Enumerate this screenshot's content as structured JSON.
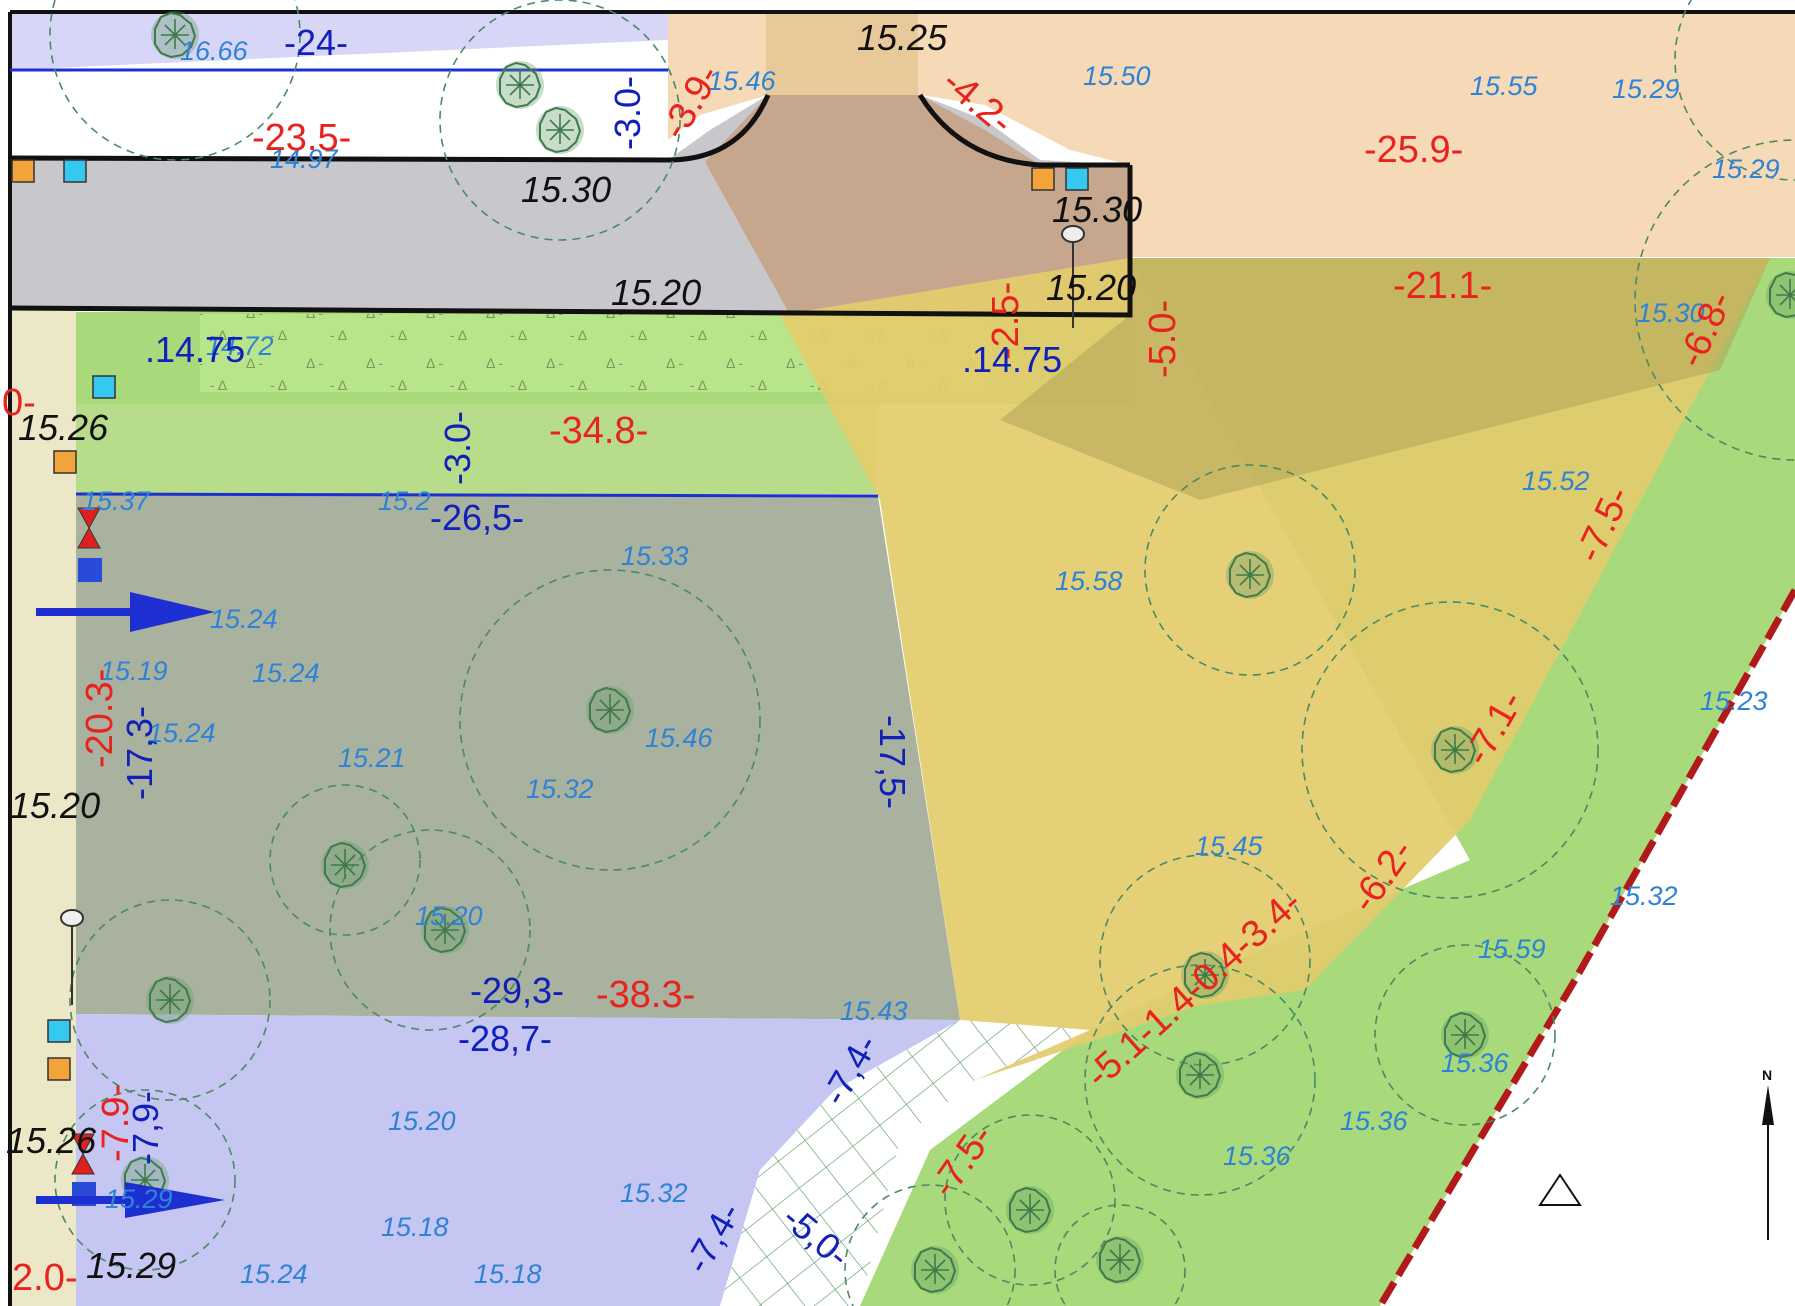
{
  "elevations_black": [
    {
      "label": "15.25"
    },
    {
      "label": "15.30"
    },
    {
      "label": "15.30"
    },
    {
      "label": "15.20"
    },
    {
      "label": "15.20"
    },
    {
      "label": "15.26"
    },
    {
      "label": "15.20"
    },
    {
      "label": "15.26"
    },
    {
      "label": "15.29"
    }
  ],
  "elevations_blue": [
    {
      "label": "16.66"
    },
    {
      "label": "15.46"
    },
    {
      "label": "15.50"
    },
    {
      "label": "15.55"
    },
    {
      "label": "15.29"
    },
    {
      "label": "15.29"
    },
    {
      "label": "14.97"
    },
    {
      "label": "15.30"
    },
    {
      "label": "14.72"
    },
    {
      "label": "15.37"
    },
    {
      "label": "15.2"
    },
    {
      "label": "15.33"
    },
    {
      "label": "15.24"
    },
    {
      "label": "15.19"
    },
    {
      "label": "15.24"
    },
    {
      "label": "15.24"
    },
    {
      "label": "15.21"
    },
    {
      "label": "15.46"
    },
    {
      "label": "15.32"
    },
    {
      "label": "15.52"
    },
    {
      "label": "15.58"
    },
    {
      "label": "15.23"
    },
    {
      "label": "15.45"
    },
    {
      "label": "15.32"
    },
    {
      "label": "15.59"
    },
    {
      "label": "15.20"
    },
    {
      "label": "15.43"
    },
    {
      "label": "15.36"
    },
    {
      "label": "15.36"
    },
    {
      "label": "15.36"
    },
    {
      "label": "15.20"
    },
    {
      "label": "15.32"
    },
    {
      "label": "15.18"
    },
    {
      "label": "15.24"
    },
    {
      "label": "15.18"
    },
    {
      "label": "15.29"
    }
  ],
  "dimensions_red": [
    {
      "label": "-23.5-"
    },
    {
      "label": "-3.9-"
    },
    {
      "label": "-4.2-"
    },
    {
      "label": "-25.9-"
    },
    {
      "label": "-21.1-"
    },
    {
      "label": "-5.0-"
    },
    {
      "label": "-2.5-"
    },
    {
      "label": "-6.8-"
    },
    {
      "label": "-34.8-"
    },
    {
      "label": "-7.5-"
    },
    {
      "label": "-20.3-"
    },
    {
      "label": "-7.1-"
    },
    {
      "label": "-6.2-"
    },
    {
      "label": "-38.3-"
    },
    {
      "label": "-5.1-1.4-0.4-3.4-"
    },
    {
      "label": "-7.5-"
    },
    {
      "label": "-7.9-"
    },
    {
      "label": "2.0-"
    },
    {
      "label": "0-"
    }
  ],
  "dimensions_blue": [
    {
      "label": "-24-"
    },
    {
      "label": "-3.0-"
    },
    {
      "label": ".14.75"
    },
    {
      "label": ".14.75"
    },
    {
      "label": "-3.0-"
    },
    {
      "label": "-26,5-"
    },
    {
      "label": "-17,3-"
    },
    {
      "label": "-17,5-"
    },
    {
      "label": "-29,3-"
    },
    {
      "label": "-28,7-"
    },
    {
      "label": "-7,4-"
    },
    {
      "label": "-7,9-"
    },
    {
      "label": "-7,4-"
    },
    {
      "label": "-5,0-"
    }
  ],
  "north_arrow": {
    "label": "N"
  },
  "colors": {
    "lavender_zone": "#d8d6f7",
    "paving_peach": "#f6d9b6",
    "road_grey": "#c8c8cc",
    "lawn_green": "#a8d97a",
    "grey_plot": "#a9b29e",
    "yellow_plot": "#e3cc6c",
    "blue_zone": "#c6c6f2",
    "boundary_red": "#b2191b",
    "dim_red": "#e8231f",
    "dim_blue": "#1020b8",
    "elev_blue": "#2f83d6"
  }
}
